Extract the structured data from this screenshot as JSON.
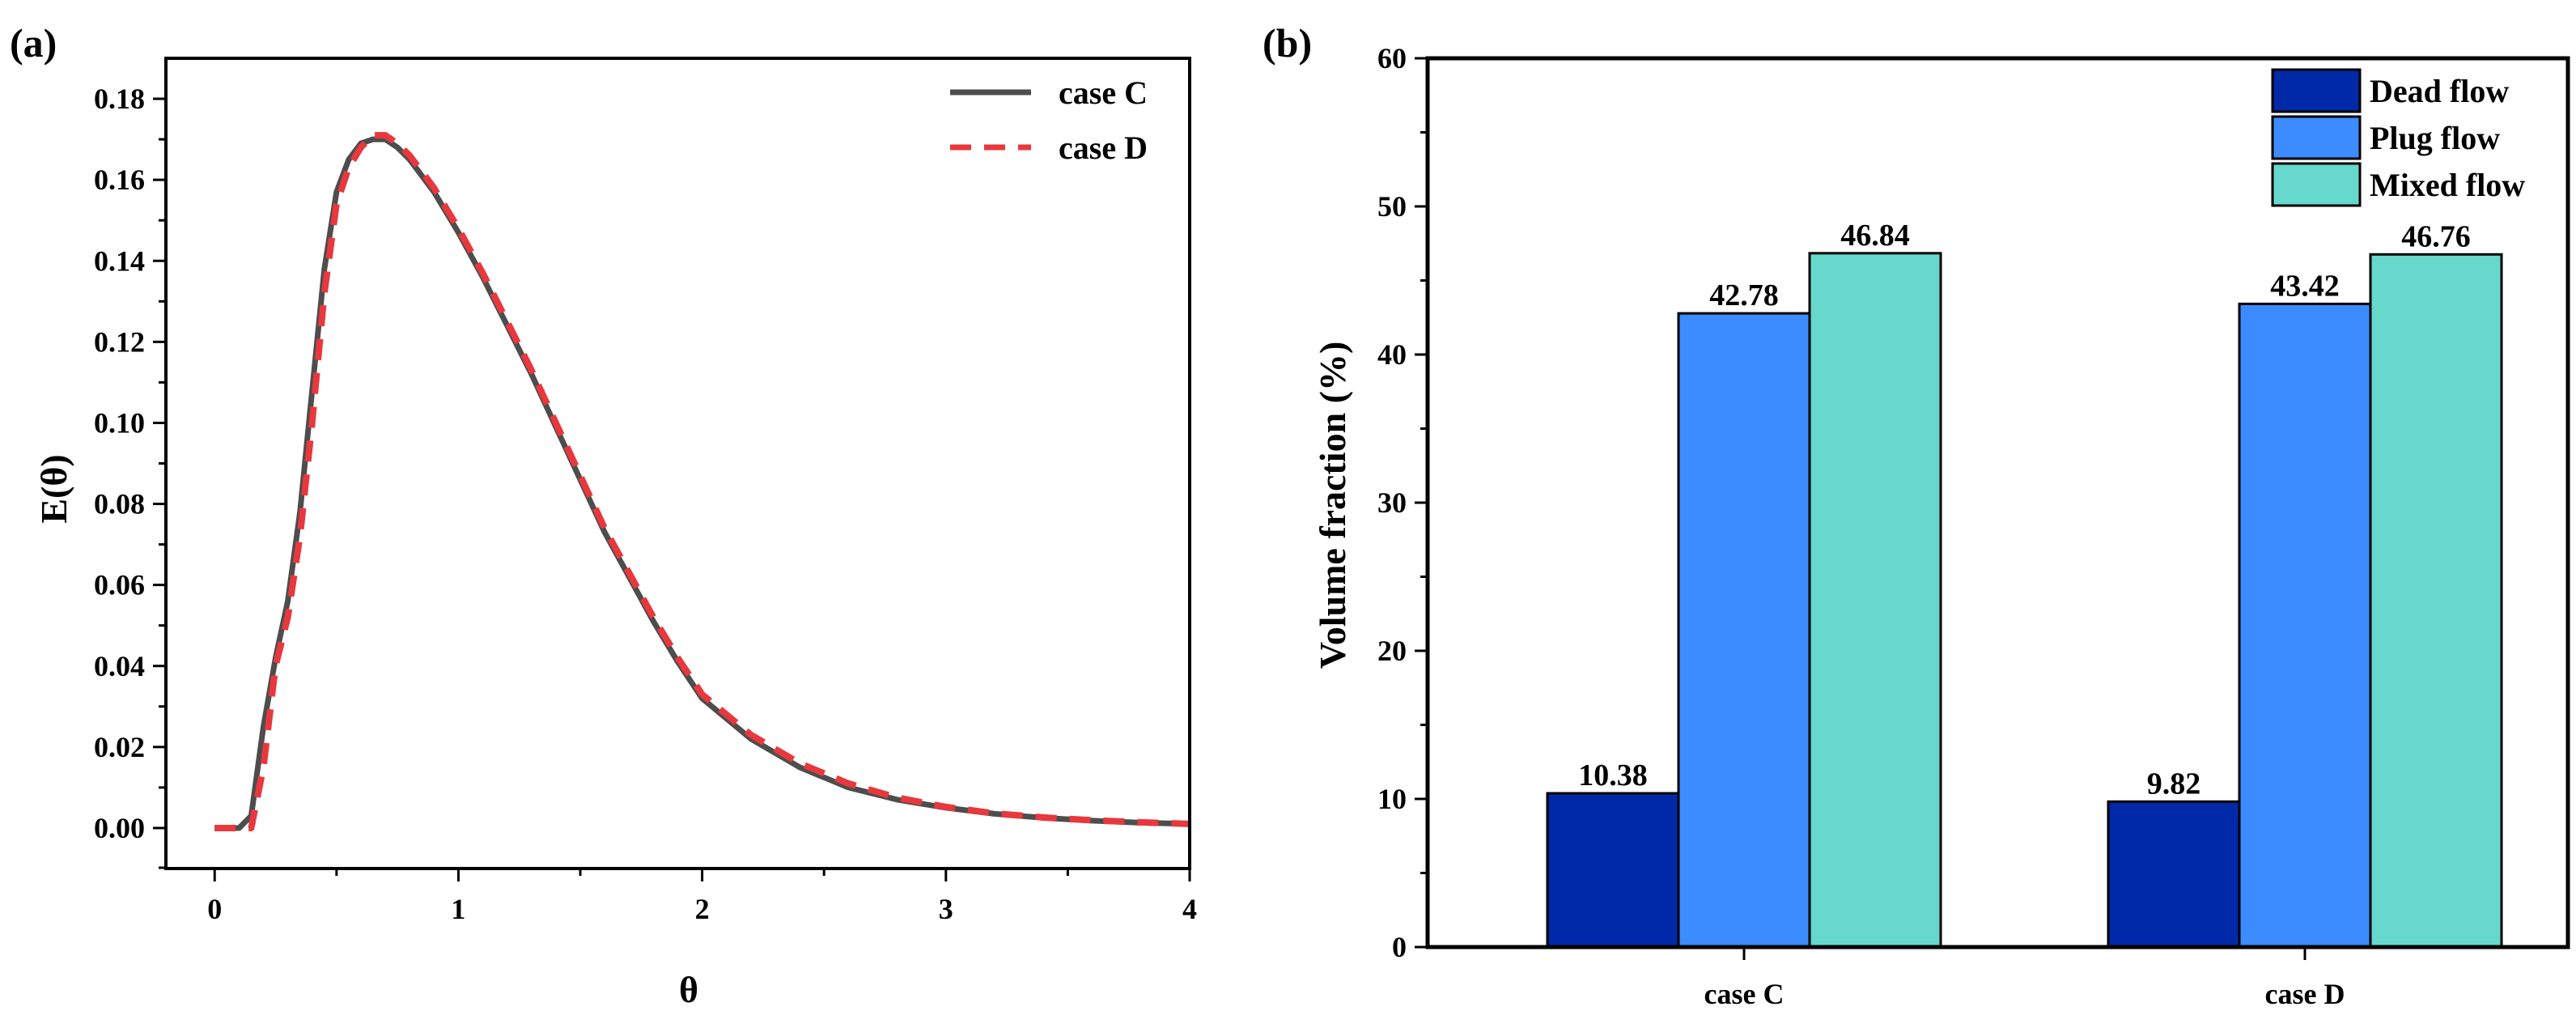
{
  "chart_data": [
    {
      "panel_label": "(a)",
      "type": "line",
      "xlabel": "θ",
      "ylabel": "E(θ)",
      "xlim": [
        -0.2,
        4
      ],
      "ylim": [
        -0.01,
        0.19
      ],
      "x_ticks": [
        "0",
        "1",
        "2",
        "3",
        "4"
      ],
      "y_ticks": [
        "0.00",
        "0.02",
        "0.04",
        "0.06",
        "0.08",
        "0.10",
        "0.12",
        "0.14",
        "0.16",
        "0.18"
      ],
      "legend_position": "top-right",
      "series": [
        {
          "name": "case C",
          "color": "#4d4d4d",
          "style": "solid",
          "x": [
            0,
            0.1,
            0.15,
            0.2,
            0.25,
            0.3,
            0.35,
            0.4,
            0.45,
            0.5,
            0.55,
            0.6,
            0.65,
            0.7,
            0.75,
            0.8,
            0.9,
            1.0,
            1.1,
            1.2,
            1.3,
            1.4,
            1.5,
            1.6,
            1.7,
            1.8,
            1.9,
            2.0,
            2.2,
            2.4,
            2.6,
            2.8,
            3.0,
            3.2,
            3.4,
            3.6,
            3.8,
            4.0
          ],
          "y": [
            0,
            0,
            0.003,
            0.025,
            0.042,
            0.056,
            0.078,
            0.108,
            0.138,
            0.157,
            0.165,
            0.169,
            0.17,
            0.17,
            0.168,
            0.165,
            0.157,
            0.147,
            0.136,
            0.124,
            0.112,
            0.099,
            0.086,
            0.073,
            0.062,
            0.051,
            0.041,
            0.032,
            0.022,
            0.015,
            0.01,
            0.007,
            0.005,
            0.0035,
            0.0025,
            0.0018,
            0.0013,
            0.001
          ]
        },
        {
          "name": "case D",
          "color": "#e8383d",
          "style": "dashed",
          "x": [
            0,
            0.1,
            0.15,
            0.2,
            0.25,
            0.3,
            0.35,
            0.4,
            0.45,
            0.5,
            0.55,
            0.6,
            0.65,
            0.7,
            0.75,
            0.8,
            0.9,
            1.0,
            1.1,
            1.2,
            1.3,
            1.4,
            1.5,
            1.6,
            1.7,
            1.8,
            1.9,
            2.0,
            2.2,
            2.4,
            2.6,
            2.8,
            3.0,
            3.2,
            3.4,
            3.6,
            3.8,
            4.0
          ],
          "y": [
            0,
            0,
            0,
            0.015,
            0.04,
            0.052,
            0.072,
            0.1,
            0.132,
            0.154,
            0.163,
            0.168,
            0.171,
            0.171,
            0.169,
            0.166,
            0.158,
            0.148,
            0.137,
            0.125,
            0.113,
            0.1,
            0.087,
            0.074,
            0.063,
            0.052,
            0.042,
            0.033,
            0.023,
            0.016,
            0.011,
            0.0075,
            0.0052,
            0.0036,
            0.0026,
            0.0019,
            0.0014,
            0.001
          ]
        }
      ]
    },
    {
      "panel_label": "(b)",
      "type": "bar",
      "xlabel": "",
      "ylabel": "Volume fraction (%)",
      "ylim": [
        0,
        60
      ],
      "y_ticks": [
        "0",
        "10",
        "20",
        "30",
        "40",
        "50",
        "60"
      ],
      "categories": [
        "case C",
        "case D"
      ],
      "legend_position": "top-right",
      "series": [
        {
          "name": "Dead flow",
          "color": "#0029a8",
          "values": [
            10.38,
            9.82
          ],
          "labels": [
            "10.38",
            "9.82"
          ]
        },
        {
          "name": "Plug flow",
          "color": "#3c8bff",
          "values": [
            42.78,
            43.42
          ],
          "labels": [
            "42.78",
            "43.42"
          ]
        },
        {
          "name": "Mixed flow",
          "color": "#66d8cc",
          "values": [
            46.84,
            46.76
          ],
          "labels": [
            "46.84",
            "46.76"
          ]
        }
      ]
    }
  ]
}
